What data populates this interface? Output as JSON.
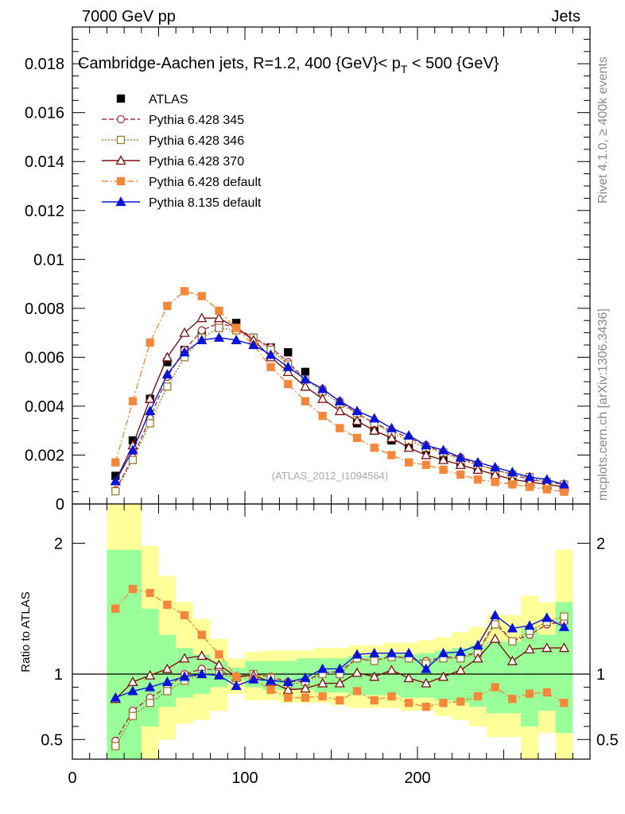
{
  "header": {
    "left": "7000 GeV pp",
    "right": "Jets"
  },
  "side_labels": {
    "rivet": "Rivet 4.1.0, ≥ 400k events",
    "mcplots": "mcplots.cern.ch [arXiv:1306.3436]"
  },
  "chart_data": [
    {
      "type": "line",
      "panel": "main",
      "title": "Cambridge-Aachen jets, R=1.2, 400 {GeV}< p_T < 500 {GeV}",
      "title_parts": {
        "before": "Cambridge-Aachen jets, R=1.2, 400 {GeV}< p",
        "sub": "T",
        "after": " < 500 {GeV}"
      },
      "watermark": "(ATLAS_2012_I1094564)",
      "xlim": [
        0,
        300
      ],
      "ylim": [
        0,
        0.0195
      ],
      "yticks": [
        {
          "v": 0,
          "label": "0"
        },
        {
          "v": 0.002,
          "label": "0.002"
        },
        {
          "v": 0.004,
          "label": "0.004"
        },
        {
          "v": 0.006,
          "label": "0.006"
        },
        {
          "v": 0.008,
          "label": "0.008"
        },
        {
          "v": 0.01,
          "label": "0.01"
        },
        {
          "v": 0.012,
          "label": "0.012"
        },
        {
          "v": 0.014,
          "label": "0.014"
        },
        {
          "v": 0.016,
          "label": "0.016"
        },
        {
          "v": 0.018,
          "label": "0.018"
        }
      ],
      "x": [
        25,
        35,
        45,
        55,
        65,
        75,
        85,
        95,
        105,
        115,
        125,
        135,
        145,
        155,
        165,
        175,
        185,
        195,
        205,
        215,
        225,
        235,
        245,
        255,
        265,
        275,
        285
      ],
      "legend_position": "top-left",
      "series": [
        {
          "name": "ATLAS",
          "color": "#000000",
          "marker": "square-filled",
          "dash": "none",
          "values": [
            0.00115,
            0.0026,
            0.0043,
            0.0058,
            0.0063,
            0.0069,
            0.0072,
            0.0074,
            0.0068,
            0.0064,
            0.0062,
            0.0054,
            0.0046,
            0.0041,
            0.0033,
            0.003,
            0.0026,
            0.0024,
            0.0022,
            0.0019,
            0.0017,
            0.0014,
            0.0012,
            0.001,
            0.00085,
            0.00075,
            0.0006
          ]
        },
        {
          "name": "Pythia 6.428 345",
          "color": "#b03040",
          "marker": "circle-open",
          "dash": "6,3",
          "values": [
            0.00056,
            0.0019,
            0.0035,
            0.0052,
            0.0063,
            0.0071,
            0.0074,
            0.0072,
            0.0068,
            0.0064,
            0.0058,
            0.0051,
            0.0047,
            0.0042,
            0.0037,
            0.0033,
            0.003,
            0.0027,
            0.0024,
            0.0021,
            0.0019,
            0.0016,
            0.0014,
            0.0012,
            0.001,
            0.0009,
            0.0008
          ]
        },
        {
          "name": "Pythia 6.428 346",
          "color": "#9a7a30",
          "marker": "square-open",
          "dash": "2,2",
          "values": [
            0.00052,
            0.0018,
            0.0033,
            0.0048,
            0.006,
            0.0068,
            0.0072,
            0.0071,
            0.0068,
            0.0063,
            0.0057,
            0.0051,
            0.0046,
            0.0041,
            0.0037,
            0.0033,
            0.0029,
            0.0026,
            0.0023,
            0.0021,
            0.0018,
            0.0016,
            0.0014,
            0.0012,
            0.0011,
            0.0009,
            0.0008
          ]
        },
        {
          "name": "Pythia 6.428 370",
          "color": "#7a1010",
          "marker": "triangle-open",
          "dash": "none",
          "values": [
            0.00093,
            0.0024,
            0.0043,
            0.006,
            0.007,
            0.0076,
            0.0076,
            0.0072,
            0.0067,
            0.006,
            0.0054,
            0.0048,
            0.0043,
            0.0038,
            0.0034,
            0.003,
            0.0027,
            0.0023,
            0.002,
            0.0018,
            0.0016,
            0.0014,
            0.0012,
            0.001,
            0.0009,
            0.0008,
            0.0007
          ]
        },
        {
          "name": "Pythia 6.428 default",
          "color": "#f5873a",
          "marker": "square-filled",
          "dash": "8,3,2,3",
          "values": [
            0.0017,
            0.0042,
            0.0066,
            0.0081,
            0.0087,
            0.0085,
            0.0079,
            0.0072,
            0.0065,
            0.0056,
            0.0049,
            0.0042,
            0.0036,
            0.0031,
            0.0027,
            0.0023,
            0.002,
            0.0017,
            0.0016,
            0.0014,
            0.0012,
            0.001,
            0.0009,
            0.0008,
            0.0007,
            0.0006,
            0.0005
          ]
        },
        {
          "name": "Pythia 8.135 default",
          "color": "#0a14d8",
          "marker": "triangle-filled",
          "dash": "none",
          "values": [
            0.00093,
            0.0022,
            0.0038,
            0.0053,
            0.0062,
            0.0067,
            0.0068,
            0.0067,
            0.0065,
            0.0061,
            0.0056,
            0.0051,
            0.0047,
            0.0042,
            0.0038,
            0.0035,
            0.0031,
            0.0028,
            0.0024,
            0.0022,
            0.0019,
            0.0017,
            0.0015,
            0.0013,
            0.0011,
            0.001,
            0.0008
          ]
        }
      ]
    },
    {
      "type": "line",
      "panel": "ratio",
      "ylabel": "Ratio to ATLAS",
      "xlim": [
        0,
        300
      ],
      "ylim": [
        0.35,
        2.3
      ],
      "reference_line": 1,
      "yticks": [
        {
          "v": 0.5,
          "label": "0.5"
        },
        {
          "v": 1,
          "label": "1"
        },
        {
          "v": 2,
          "label": "2"
        }
      ],
      "xticks": [
        {
          "v": 0,
          "label": "0"
        },
        {
          "v": 100,
          "label": "100"
        },
        {
          "v": 200,
          "label": "200"
        }
      ],
      "x": [
        25,
        35,
        45,
        55,
        65,
        75,
        85,
        95,
        105,
        115,
        125,
        135,
        145,
        155,
        165,
        175,
        185,
        195,
        205,
        215,
        225,
        235,
        245,
        255,
        265,
        275,
        285
      ],
      "bin_edges": [
        20,
        30,
        40,
        50,
        60,
        70,
        80,
        90,
        100,
        110,
        120,
        130,
        140,
        150,
        160,
        170,
        180,
        190,
        200,
        210,
        220,
        230,
        240,
        250,
        260,
        270,
        280,
        290
      ],
      "bands": {
        "yellow_lo": [
          0.35,
          0.35,
          0.35,
          0.5,
          0.62,
          0.65,
          0.72,
          0.85,
          0.8,
          0.8,
          0.78,
          0.78,
          0.78,
          0.76,
          0.74,
          0.74,
          0.74,
          0.72,
          0.72,
          0.68,
          0.65,
          0.6,
          0.52,
          0.52,
          0.35,
          0.55,
          0.35
        ],
        "yellow_hi": [
          2.3,
          2.3,
          1.98,
          1.75,
          1.55,
          1.42,
          1.27,
          1.12,
          1.17,
          1.18,
          1.18,
          1.18,
          1.2,
          1.2,
          1.22,
          1.22,
          1.24,
          1.24,
          1.26,
          1.28,
          1.32,
          1.36,
          1.45,
          1.45,
          1.6,
          1.55,
          1.95
        ],
        "green_lo": [
          0.35,
          0.35,
          0.6,
          0.75,
          0.82,
          0.85,
          0.9,
          0.95,
          0.9,
          0.88,
          0.88,
          0.88,
          0.86,
          0.86,
          0.84,
          0.84,
          0.84,
          0.82,
          0.82,
          0.8,
          0.78,
          0.75,
          0.7,
          0.7,
          0.6,
          0.72,
          0.55
        ],
        "green_hi": [
          1.95,
          1.95,
          1.5,
          1.3,
          1.2,
          1.15,
          1.1,
          1.05,
          1.1,
          1.1,
          1.1,
          1.12,
          1.12,
          1.12,
          1.14,
          1.14,
          1.15,
          1.15,
          1.16,
          1.18,
          1.2,
          1.22,
          1.25,
          1.25,
          1.35,
          1.3,
          1.55
        ]
      },
      "series": [
        {
          "name": "Pythia 6.428 345",
          "color": "#b03040",
          "marker": "circle-open",
          "dash": "6,3",
          "values": [
            0.49,
            0.72,
            0.82,
            0.9,
            1.0,
            1.04,
            1.03,
            0.98,
            1.0,
            0.98,
            0.94,
            0.95,
            1.01,
            1.02,
            1.12,
            1.1,
            1.14,
            1.12,
            1.1,
            1.13,
            1.13,
            1.17,
            1.4,
            1.25,
            1.3,
            1.38,
            1.4
          ]
        },
        {
          "name": "Pythia 6.428 346",
          "color": "#9a7a30",
          "marker": "square-open",
          "dash": "2,2",
          "values": [
            0.45,
            0.68,
            0.78,
            0.87,
            0.95,
            1.0,
            1.0,
            0.97,
            1.0,
            0.97,
            0.92,
            0.94,
            1.0,
            1.0,
            1.12,
            1.1,
            1.13,
            1.12,
            1.08,
            1.12,
            1.12,
            1.16,
            1.38,
            1.25,
            1.33,
            1.4,
            1.44
          ]
        },
        {
          "name": "Pythia 6.428 370",
          "color": "#7a1010",
          "marker": "triangle-open",
          "dash": "none",
          "values": [
            0.81,
            0.94,
            0.99,
            1.04,
            1.12,
            1.14,
            1.07,
            0.98,
            0.99,
            0.94,
            0.88,
            0.89,
            0.93,
            0.93,
            1.01,
            0.98,
            1.03,
            0.97,
            0.93,
            0.98,
            1.03,
            1.12,
            1.27,
            1.1,
            1.19,
            1.2,
            1.2
          ]
        },
        {
          "name": "Pythia 6.428 default",
          "color": "#f5873a",
          "marker": "square-filled",
          "dash": "8,3,2,3",
          "values": [
            1.5,
            1.65,
            1.62,
            1.53,
            1.45,
            1.3,
            1.15,
            0.98,
            0.96,
            0.88,
            0.82,
            0.82,
            0.83,
            0.8,
            0.87,
            0.8,
            0.83,
            0.78,
            0.75,
            0.78,
            0.79,
            0.83,
            0.9,
            0.81,
            0.85,
            0.86,
            0.78
          ]
        },
        {
          "name": "Pythia 8.135 default",
          "color": "#0a14d8",
          "marker": "triangle-filled",
          "dash": "none",
          "values": [
            0.82,
            0.87,
            0.9,
            0.94,
            0.98,
            1.0,
            0.99,
            0.91,
            0.96,
            0.95,
            0.94,
            0.97,
            1.04,
            1.04,
            1.15,
            1.16,
            1.16,
            1.16,
            1.04,
            1.16,
            1.17,
            1.22,
            1.45,
            1.35,
            1.37,
            1.43,
            1.36
          ]
        }
      ]
    }
  ]
}
